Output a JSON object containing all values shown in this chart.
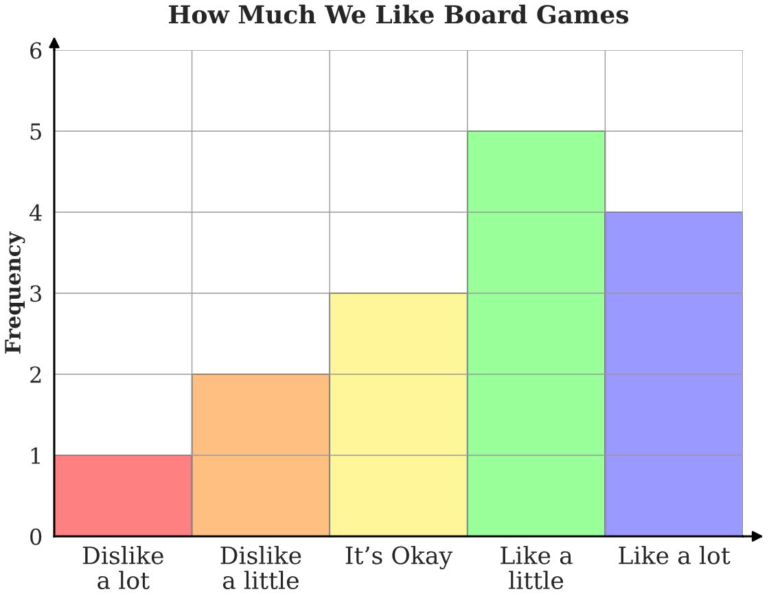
{
  "chart_data": {
    "type": "bar",
    "title": "How Much We Like Board Games",
    "ylabel": "Frequency",
    "categories": [
      "Dislike\na lot",
      "Dislike\na little",
      "It’s Okay",
      "Like a\nlittle",
      "Like a lot"
    ],
    "values": [
      1,
      2,
      3,
      5,
      4
    ],
    "colors": [
      "#ff8080",
      "#ffbf80",
      "#fff599",
      "#99ff99",
      "#9999ff"
    ],
    "ylim": [
      0,
      6
    ],
    "yticks": [
      0,
      1,
      2,
      3,
      4,
      5,
      6
    ],
    "grid": true
  }
}
